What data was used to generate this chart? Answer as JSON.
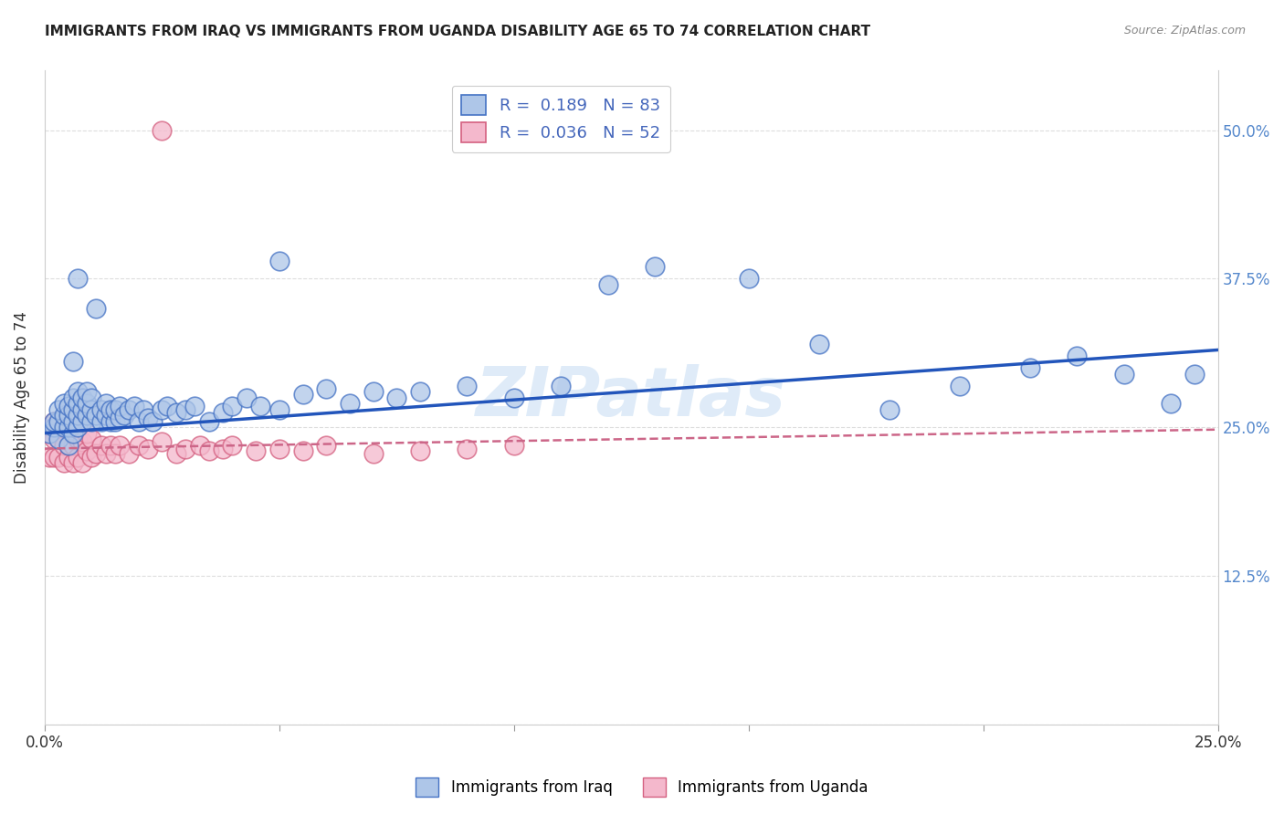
{
  "title": "IMMIGRANTS FROM IRAQ VS IMMIGRANTS FROM UGANDA DISABILITY AGE 65 TO 74 CORRELATION CHART",
  "source": "Source: ZipAtlas.com",
  "ylabel": "Disability Age 65 to 74",
  "xlim": [
    0.0,
    0.25
  ],
  "ylim": [
    0.0,
    0.55
  ],
  "xticks": [
    0.0,
    0.05,
    0.1,
    0.15,
    0.2,
    0.25
  ],
  "xticklabels": [
    "0.0%",
    "",
    "",
    "",
    "",
    "25.0%"
  ],
  "yticks": [
    0.0,
    0.125,
    0.25,
    0.375,
    0.5
  ],
  "yticklabels": [
    "",
    "12.5%",
    "25.0%",
    "37.5%",
    "50.0%"
  ],
  "iraq_R": 0.189,
  "iraq_N": 83,
  "uganda_R": 0.036,
  "uganda_N": 52,
  "iraq_color": "#aec6e8",
  "iraq_edge_color": "#4472c4",
  "uganda_color": "#f4b8cc",
  "uganda_edge_color": "#d46080",
  "iraq_line_color": "#2255bb",
  "uganda_line_color": "#cc6688",
  "grid_color": "#dddddd",
  "watermark": "ZIPatlas",
  "iraq_x": [
    0.001,
    0.002,
    0.002,
    0.003,
    0.003,
    0.003,
    0.004,
    0.004,
    0.004,
    0.005,
    0.005,
    0.005,
    0.005,
    0.006,
    0.006,
    0.006,
    0.006,
    0.007,
    0.007,
    0.007,
    0.007,
    0.008,
    0.008,
    0.008,
    0.009,
    0.009,
    0.009,
    0.01,
    0.01,
    0.01,
    0.011,
    0.011,
    0.012,
    0.012,
    0.013,
    0.013,
    0.014,
    0.014,
    0.015,
    0.015,
    0.016,
    0.016,
    0.017,
    0.018,
    0.019,
    0.02,
    0.021,
    0.022,
    0.023,
    0.025,
    0.026,
    0.028,
    0.03,
    0.032,
    0.035,
    0.038,
    0.04,
    0.043,
    0.046,
    0.05,
    0.055,
    0.06,
    0.065,
    0.07,
    0.075,
    0.08,
    0.09,
    0.1,
    0.11,
    0.12,
    0.13,
    0.15,
    0.165,
    0.18,
    0.195,
    0.21,
    0.22,
    0.23,
    0.24,
    0.245,
    0.006,
    0.007,
    0.05
  ],
  "iraq_y": [
    0.245,
    0.25,
    0.255,
    0.24,
    0.255,
    0.265,
    0.25,
    0.26,
    0.27,
    0.235,
    0.25,
    0.26,
    0.268,
    0.245,
    0.255,
    0.265,
    0.275,
    0.25,
    0.26,
    0.27,
    0.28,
    0.255,
    0.265,
    0.275,
    0.26,
    0.27,
    0.28,
    0.255,
    0.265,
    0.275,
    0.26,
    0.35,
    0.255,
    0.265,
    0.26,
    0.27,
    0.255,
    0.265,
    0.255,
    0.265,
    0.258,
    0.268,
    0.26,
    0.265,
    0.268,
    0.255,
    0.265,
    0.258,
    0.255,
    0.265,
    0.268,
    0.262,
    0.265,
    0.268,
    0.255,
    0.262,
    0.268,
    0.275,
    0.268,
    0.265,
    0.278,
    0.282,
    0.27,
    0.28,
    0.275,
    0.28,
    0.285,
    0.275,
    0.285,
    0.37,
    0.385,
    0.375,
    0.32,
    0.265,
    0.285,
    0.3,
    0.31,
    0.295,
    0.27,
    0.295,
    0.305,
    0.375,
    0.39
  ],
  "uganda_x": [
    0.001,
    0.001,
    0.002,
    0.002,
    0.002,
    0.003,
    0.003,
    0.003,
    0.004,
    0.004,
    0.004,
    0.005,
    0.005,
    0.005,
    0.005,
    0.006,
    0.006,
    0.006,
    0.007,
    0.007,
    0.007,
    0.008,
    0.008,
    0.009,
    0.009,
    0.01,
    0.01,
    0.011,
    0.012,
    0.013,
    0.014,
    0.015,
    0.016,
    0.018,
    0.02,
    0.022,
    0.025,
    0.028,
    0.03,
    0.033,
    0.035,
    0.038,
    0.04,
    0.045,
    0.05,
    0.055,
    0.06,
    0.07,
    0.08,
    0.09,
    0.025,
    0.1
  ],
  "uganda_y": [
    0.225,
    0.245,
    0.225,
    0.24,
    0.255,
    0.225,
    0.24,
    0.255,
    0.22,
    0.235,
    0.25,
    0.225,
    0.235,
    0.248,
    0.26,
    0.22,
    0.235,
    0.248,
    0.225,
    0.24,
    0.252,
    0.22,
    0.238,
    0.23,
    0.245,
    0.225,
    0.24,
    0.228,
    0.235,
    0.228,
    0.235,
    0.228,
    0.235,
    0.228,
    0.235,
    0.232,
    0.238,
    0.228,
    0.232,
    0.235,
    0.23,
    0.232,
    0.235,
    0.23,
    0.232,
    0.23,
    0.235,
    0.228,
    0.23,
    0.232,
    0.5,
    0.235
  ],
  "iraq_trendline_x0": 0.0,
  "iraq_trendline_y0": 0.245,
  "iraq_trendline_x1": 0.25,
  "iraq_trendline_y1": 0.315,
  "uganda_trendline_x0": 0.0,
  "uganda_trendline_y0": 0.232,
  "uganda_trendline_x1": 0.25,
  "uganda_trendline_y1": 0.248
}
